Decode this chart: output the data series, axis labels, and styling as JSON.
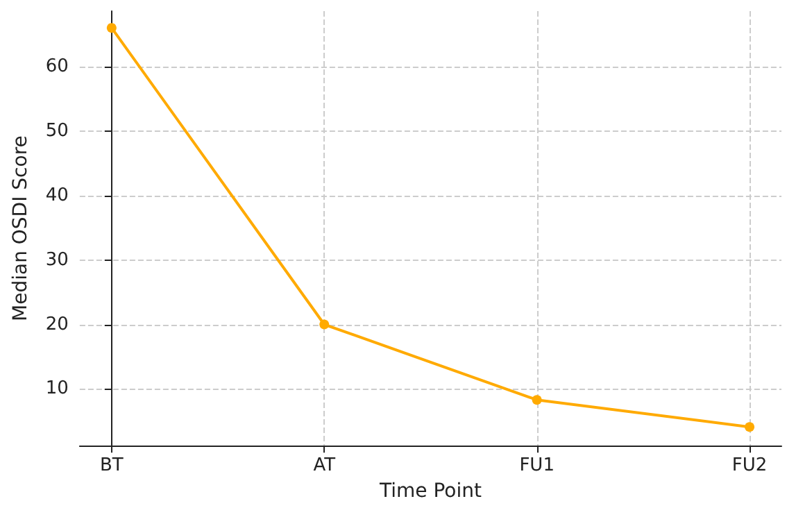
{
  "chart_data": {
    "type": "line",
    "xlabel": "Time Point",
    "ylabel": "Median OSDI Score",
    "categories": [
      "BT",
      "AT",
      "FU1",
      "FU2"
    ],
    "series": [
      {
        "color": "#ffaa00",
        "values": [
          66,
          20,
          8.3,
          4.1
        ]
      }
    ],
    "ylim": [
      1.2,
      68.6
    ],
    "yticks": [
      10,
      20,
      30,
      40,
      50,
      60
    ],
    "grid": true,
    "marker": "circle",
    "line_style": "solid"
  }
}
